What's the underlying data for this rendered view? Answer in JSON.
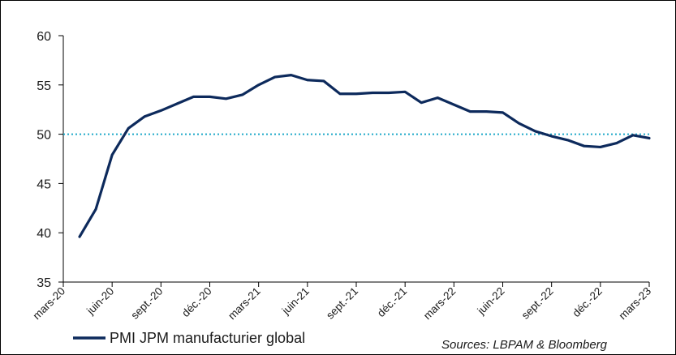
{
  "chart_data": {
    "type": "line",
    "title": "",
    "xlabel": "",
    "ylabel": "",
    "ylim": [
      35,
      60
    ],
    "yticks": [
      35,
      40,
      45,
      50,
      55,
      60
    ],
    "xtick_labels": [
      "mars-20",
      "juin-20",
      "sept.-20",
      "déc.-20",
      "mars-21",
      "juin-21",
      "sept.-21",
      "déc.-21",
      "mars-22",
      "juin-22",
      "sept.-22",
      "déc.-22",
      "mars-23"
    ],
    "grid": false,
    "reference_line": {
      "value": 50,
      "style": "dotted",
      "color": "#1fa9c9"
    },
    "series": [
      {
        "name": "PMI JPM manufacturier global",
        "color": "#0d2a5c",
        "points": [
          [
            "2020-04",
            39.6
          ],
          [
            "2020-05",
            42.4
          ],
          [
            "2020-06",
            47.9
          ],
          [
            "2020-07",
            50.6
          ],
          [
            "2020-08",
            51.8
          ],
          [
            "2020-09",
            52.4
          ],
          [
            "2020-10",
            53.1
          ],
          [
            "2020-11",
            53.8
          ],
          [
            "2020-12",
            53.8
          ],
          [
            "2021-01",
            53.6
          ],
          [
            "2021-02",
            54.0
          ],
          [
            "2021-03",
            55.0
          ],
          [
            "2021-04",
            55.8
          ],
          [
            "2021-05",
            56.0
          ],
          [
            "2021-06",
            55.5
          ],
          [
            "2021-07",
            55.4
          ],
          [
            "2021-08",
            54.1
          ],
          [
            "2021-09",
            54.1
          ],
          [
            "2021-10",
            54.2
          ],
          [
            "2021-11",
            54.2
          ],
          [
            "2021-12",
            54.3
          ],
          [
            "2022-01",
            53.2
          ],
          [
            "2022-02",
            53.7
          ],
          [
            "2022-03",
            53.0
          ],
          [
            "2022-04",
            52.3
          ],
          [
            "2022-05",
            52.3
          ],
          [
            "2022-06",
            52.2
          ],
          [
            "2022-07",
            51.1
          ],
          [
            "2022-08",
            50.3
          ],
          [
            "2022-09",
            49.8
          ],
          [
            "2022-10",
            49.4
          ],
          [
            "2022-11",
            48.8
          ],
          [
            "2022-12",
            48.7
          ],
          [
            "2023-01",
            49.1
          ],
          [
            "2023-02",
            49.9
          ],
          [
            "2023-03",
            49.6
          ]
        ]
      }
    ],
    "legend_position": "bottom-left",
    "source_note": "Sources: LBPAM & Bloomberg"
  }
}
